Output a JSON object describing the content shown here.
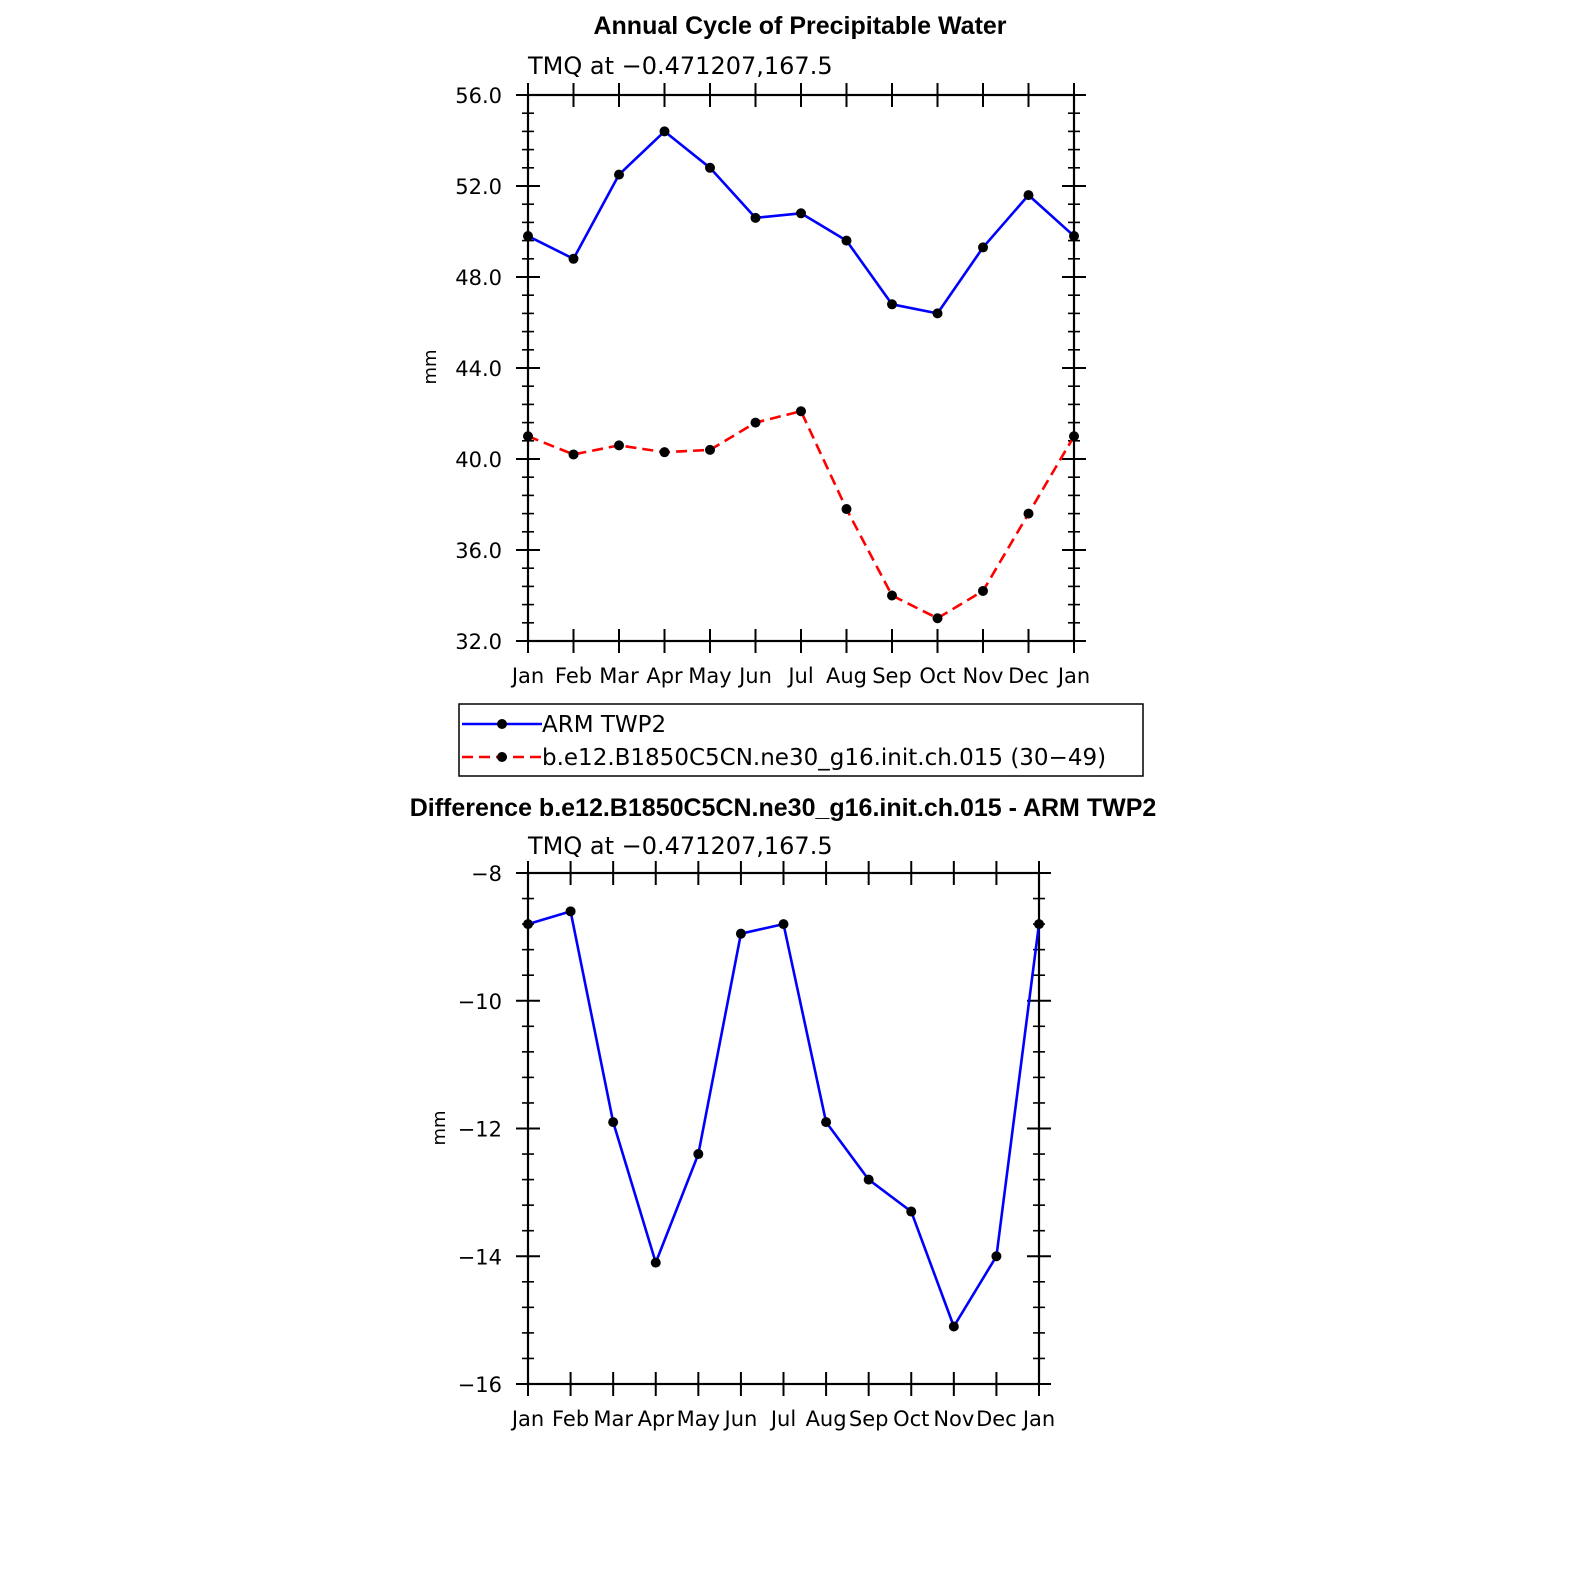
{
  "figure": {
    "charts": [
      "Annual Cycle of Precipitable Water",
      "Difference b.e12.B1850C5CN.ne30_g16.init.ch.015 - ARM TWP2"
    ]
  },
  "chart_data": [
    {
      "type": "line",
      "title": "Annual Cycle of Precipitable Water",
      "subtitle": "TMQ at −0.471207,167.5",
      "xlabel": "",
      "ylabel": "mm",
      "categories": [
        "Jan",
        "Feb",
        "Mar",
        "Apr",
        "May",
        "Jun",
        "Jul",
        "Aug",
        "Sep",
        "Oct",
        "Nov",
        "Dec",
        "Jan"
      ],
      "ylim": [
        32,
        56
      ],
      "yticks": [
        "32.0",
        "36.0",
        "40.0",
        "44.0",
        "48.0",
        "52.0",
        "56.0"
      ],
      "ytick_values": [
        32,
        36,
        40,
        44,
        48,
        52,
        56
      ],
      "series": [
        {
          "name": "ARM TWP2",
          "color": "#0000ff",
          "style": "solid",
          "values": [
            49.8,
            48.8,
            52.5,
            54.4,
            52.8,
            50.6,
            50.8,
            49.6,
            46.8,
            46.4,
            49.3,
            51.6,
            49.8
          ]
        },
        {
          "name": "b.e12.B1850C5CN.ne30_g16.init.ch.015 (30−49)",
          "color": "#ff0000",
          "style": "dashed",
          "values": [
            41.0,
            40.2,
            40.6,
            40.3,
            40.4,
            41.6,
            42.1,
            37.8,
            34.0,
            33.0,
            34.2,
            37.6,
            41.0
          ]
        }
      ],
      "legend": "below"
    },
    {
      "type": "line",
      "title": "Difference b.e12.B1850C5CN.ne30_g16.init.ch.015 - ARM TWP2",
      "subtitle": "TMQ at −0.471207,167.5",
      "xlabel": "",
      "ylabel": "mm",
      "categories": [
        "Jan",
        "Feb",
        "Mar",
        "Apr",
        "May",
        "Jun",
        "Jul",
        "Aug",
        "Sep",
        "Oct",
        "Nov",
        "Dec",
        "Jan"
      ],
      "ylim": [
        -16,
        -8
      ],
      "yticks": [
        "−16",
        "−14",
        "−12",
        "−10",
        "−8"
      ],
      "ytick_values": [
        -16,
        -14,
        -12,
        -10,
        -8
      ],
      "series": [
        {
          "name": "Difference",
          "color": "#0000ff",
          "style": "solid",
          "values": [
            -8.8,
            -8.6,
            -11.9,
            -14.1,
            -12.4,
            -8.95,
            -8.8,
            -11.9,
            -12.8,
            -13.3,
            -15.1,
            -14.0,
            -8.8
          ]
        }
      ]
    }
  ]
}
